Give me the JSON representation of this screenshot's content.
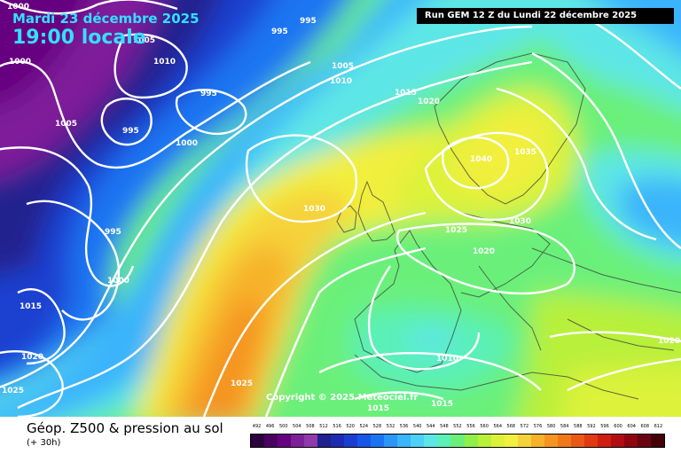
{
  "header": {
    "date_label": "Mardi 23 décembre 2025",
    "time_label": "19:00 locale",
    "run_label": "Run GEM 12 Z du Lundi 22 décembre 2025"
  },
  "map": {
    "copyright": "Copyright © 2025 Meteociel.fr",
    "isobar_labels": [
      "1000",
      "995",
      "1005",
      "1010",
      "1000",
      "995",
      "1005",
      "1010",
      "995",
      "995",
      "1000",
      "1015",
      "1020",
      "1005",
      "1040",
      "1035",
      "1030",
      "995",
      "1030",
      "1025",
      "1000",
      "1020",
      "1015",
      "1020",
      "1010",
      "1020",
      "1025",
      "1025",
      "1015",
      "1015"
    ]
  },
  "legend": {
    "title": "Géop. Z500 & pression au sol",
    "subtitle": "(+ 30h)",
    "values": [
      "492",
      "496",
      "500",
      "504",
      "508",
      "512",
      "516",
      "520",
      "524",
      "528",
      "532",
      "536",
      "540",
      "544",
      "548",
      "552",
      "556",
      "560",
      "564",
      "568",
      "572",
      "576",
      "580",
      "584",
      "588",
      "592",
      "596",
      "600",
      "604",
      "608",
      "612"
    ],
    "colors": [
      "#2d0040",
      "#4a0060",
      "#660080",
      "#7e1f9a",
      "#8f3aa8",
      "#20208f",
      "#1d2bb0",
      "#1a3fd0",
      "#1657e8",
      "#1a74f2",
      "#2b95f8",
      "#3ab4fb",
      "#4cd0f8",
      "#5de6e6",
      "#5af0b8",
      "#6af07a",
      "#8ff04a",
      "#b8f03a",
      "#dcf23a",
      "#f2ef3e",
      "#f6d23a",
      "#f6b22a",
      "#f59420",
      "#f07818",
      "#e85a14",
      "#e03a10",
      "#d01e10",
      "#b00e10",
      "#8e0610",
      "#6a0410",
      "#440208"
    ]
  }
}
